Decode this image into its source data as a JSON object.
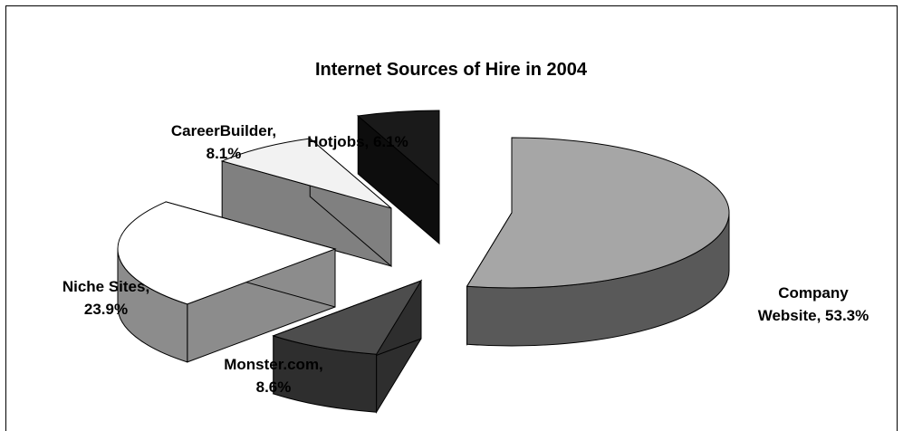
{
  "chart_data": {
    "type": "pie",
    "style": "3d-exploded",
    "title": "Internet Sources of Hire in 2004",
    "slices": [
      {
        "category": "Company Website",
        "value": 53.3,
        "label_lines": [
          "Company",
          "Website, 53.3%"
        ],
        "top_color": "#a6a6a6",
        "side_color": "#595959"
      },
      {
        "category": "Monster.com",
        "value": 8.6,
        "label_lines": [
          "Monster.com,",
          "8.6%"
        ],
        "top_color": "#4d4d4d",
        "side_color": "#2e2e2e"
      },
      {
        "category": "Niche Sites",
        "value": 23.9,
        "label_lines": [
          "Niche Sites,",
          "23.9%"
        ],
        "top_color": "#ffffff",
        "side_color": "#8c8c8c"
      },
      {
        "category": "CareerBuilder",
        "value": 8.1,
        "label_lines": [
          "CareerBuilder,",
          "8.1%"
        ],
        "top_color": "#f2f2f2",
        "side_color": "#808080"
      },
      {
        "category": "Hotjobs",
        "value": 6.1,
        "label_lines": [
          "Hotjobs, 6.1%"
        ],
        "top_color": "#1a1a1a",
        "side_color": "#0d0d0d"
      }
    ],
    "legend": "none",
    "data_labels": "category and percent"
  }
}
